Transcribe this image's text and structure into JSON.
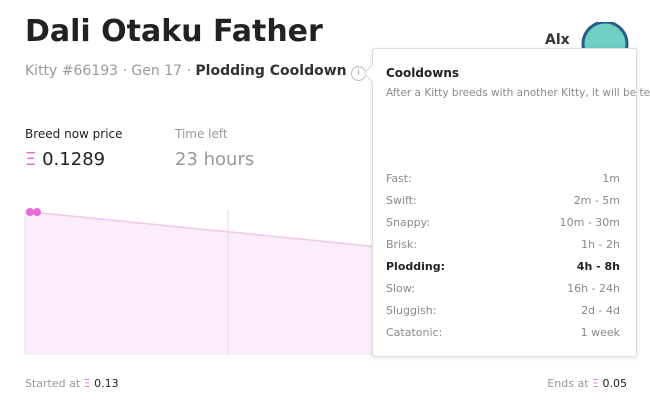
{
  "header": {
    "title": "Dali Otaku Father",
    "kitty_id": "Kitty #66193",
    "separator": "·",
    "generation": "Gen 17",
    "cooldown": "Plodding Cooldown",
    "info_icon": "i"
  },
  "user": {
    "name": "Alx"
  },
  "currency": "Ξ",
  "price": {
    "label": "Breed now price",
    "value": "0.1289"
  },
  "time": {
    "label": "Time left",
    "value": "23 hours"
  },
  "auction": {
    "start_label": "Started at",
    "start_value": "0.13",
    "end_label": "Ends at",
    "end_value": "0.05"
  },
  "tooltip": {
    "title": "Cooldowns",
    "description": "After a Kitty breeds with another Kitty, it will be temporarily unable to breed again for a brief period of time. The time it takes to recover will increase each time the Kitty breeds.",
    "rows": [
      {
        "name": "Fast:",
        "value": "1m"
      },
      {
        "name": "Swift:",
        "value": "2m - 5m"
      },
      {
        "name": "Snappy:",
        "value": "10m - 30m"
      },
      {
        "name": "Brisk:",
        "value": "1h - 2h"
      },
      {
        "name": "Plodding:",
        "value": "4h - 8h",
        "bold": true
      },
      {
        "name": "Slow:",
        "value": "16h - 24h"
      },
      {
        "name": "Sluggish:",
        "value": "2d - 4d"
      },
      {
        "name": "Catatonic:",
        "value": "1 week"
      }
    ]
  }
}
